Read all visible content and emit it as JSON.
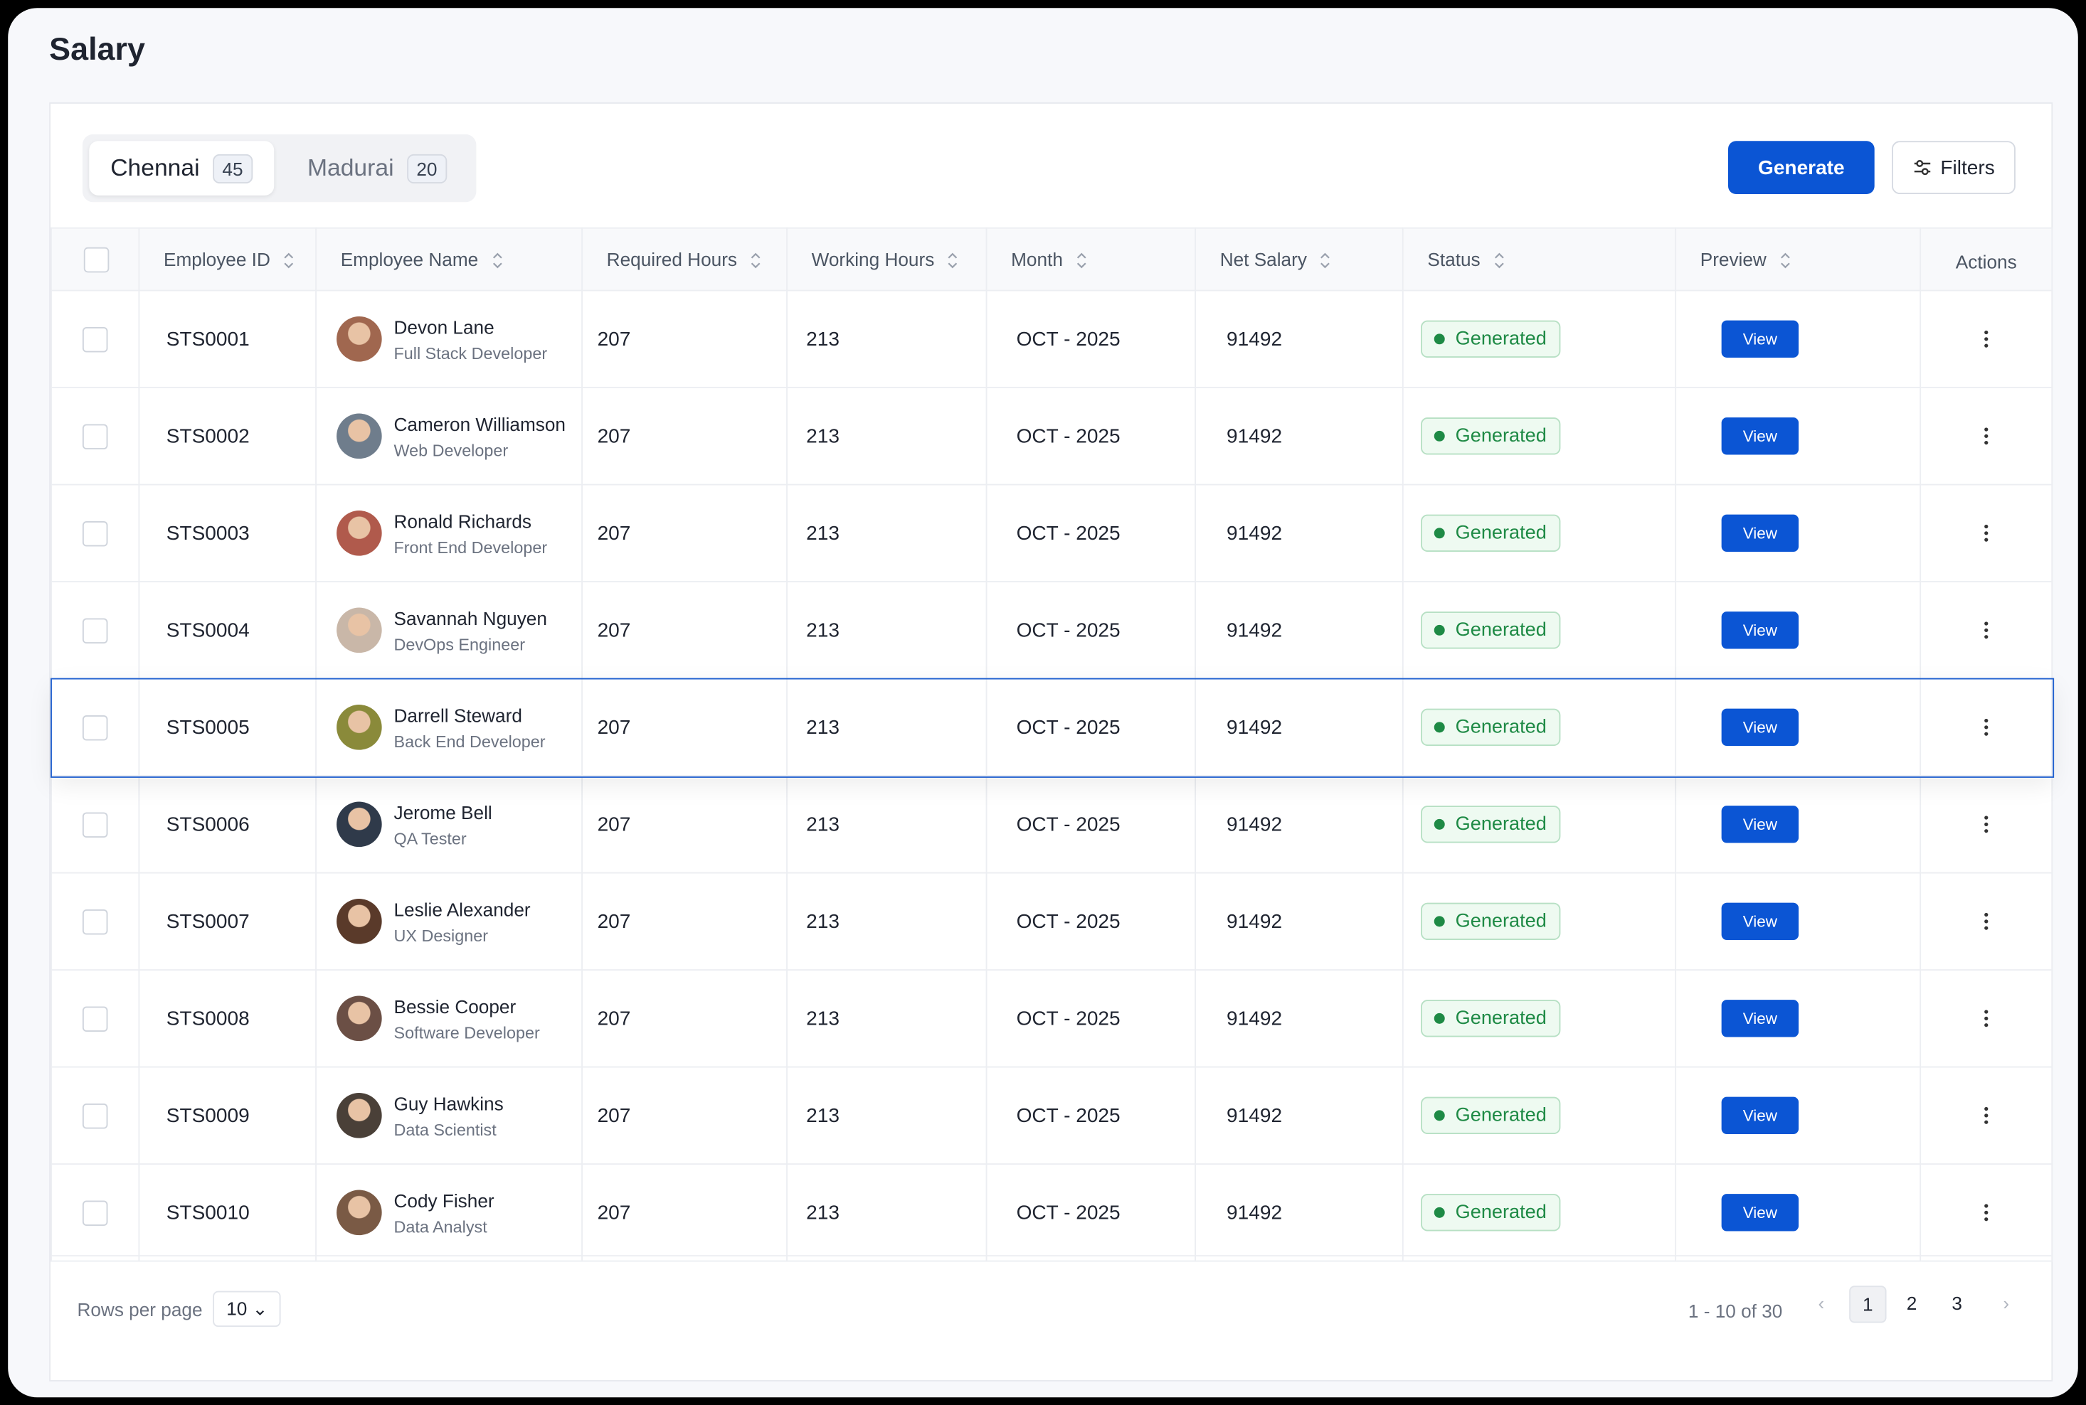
{
  "page": {
    "title": "Salary"
  },
  "tabs": [
    {
      "label": "Chennai",
      "count": "45"
    },
    {
      "label": "Madurai",
      "count": "20"
    }
  ],
  "actions": {
    "generate": "Generate",
    "filters": "Filters"
  },
  "table": {
    "headers": [
      "Employee ID",
      "Employee Name",
      "Required Hours",
      "Working Hours",
      "Month",
      "Net Salary",
      "Status",
      "Preview",
      "Actions"
    ],
    "rows": [
      {
        "id": "STS0001",
        "name": "Devon Lane",
        "role": "Full Stack Developer",
        "required_hours": "207",
        "working_hours": "213",
        "month": "OCT - 2025",
        "net_salary": "91492",
        "status": "Generated",
        "preview": "View"
      },
      {
        "id": "STS0002",
        "name": "Cameron Williamson",
        "role": "Web Developer",
        "required_hours": "207",
        "working_hours": "213",
        "month": "OCT - 2025",
        "net_salary": "91492",
        "status": "Generated",
        "preview": "View"
      },
      {
        "id": "STS0003",
        "name": "Ronald Richards",
        "role": "Front End Developer",
        "required_hours": "207",
        "working_hours": "213",
        "month": "OCT - 2025",
        "net_salary": "91492",
        "status": "Generated",
        "preview": "View"
      },
      {
        "id": "STS0004",
        "name": "Savannah Nguyen",
        "role": "DevOps Engineer",
        "required_hours": "207",
        "working_hours": "213",
        "month": "OCT - 2025",
        "net_salary": "91492",
        "status": "Generated",
        "preview": "View"
      },
      {
        "id": "STS0005",
        "name": "Darrell Steward",
        "role": "Back End Developer",
        "required_hours": "207",
        "working_hours": "213",
        "month": "OCT - 2025",
        "net_salary": "91492",
        "status": "Generated",
        "preview": "View"
      },
      {
        "id": "STS0006",
        "name": "Jerome Bell",
        "role": "QA Tester",
        "required_hours": "207",
        "working_hours": "213",
        "month": "OCT - 2025",
        "net_salary": "91492",
        "status": "Generated",
        "preview": "View"
      },
      {
        "id": "STS0007",
        "name": "Leslie Alexander",
        "role": "UX Designer",
        "required_hours": "207",
        "working_hours": "213",
        "month": "OCT - 2025",
        "net_salary": "91492",
        "status": "Generated",
        "preview": "View"
      },
      {
        "id": "STS0008",
        "name": "Bessie Cooper",
        "role": "Software Developer",
        "required_hours": "207",
        "working_hours": "213",
        "month": "OCT - 2025",
        "net_salary": "91492",
        "status": "Generated",
        "preview": "View"
      },
      {
        "id": "STS0009",
        "name": "Guy Hawkins",
        "role": "Data Scientist",
        "required_hours": "207",
        "working_hours": "213",
        "month": "OCT - 2025",
        "net_salary": "91492",
        "status": "Generated",
        "preview": "View"
      },
      {
        "id": "STS0010",
        "name": "Cody Fisher",
        "role": "Data Analyst",
        "required_hours": "207",
        "working_hours": "213",
        "month": "OCT - 2025",
        "net_salary": "91492",
        "status": "Generated",
        "preview": "View"
      }
    ]
  },
  "footer": {
    "rows_per_page_label": "Rows per page",
    "rows_per_page": "10",
    "range": "1 - 10 of 30",
    "pages": [
      "1",
      "2",
      "3"
    ]
  }
}
